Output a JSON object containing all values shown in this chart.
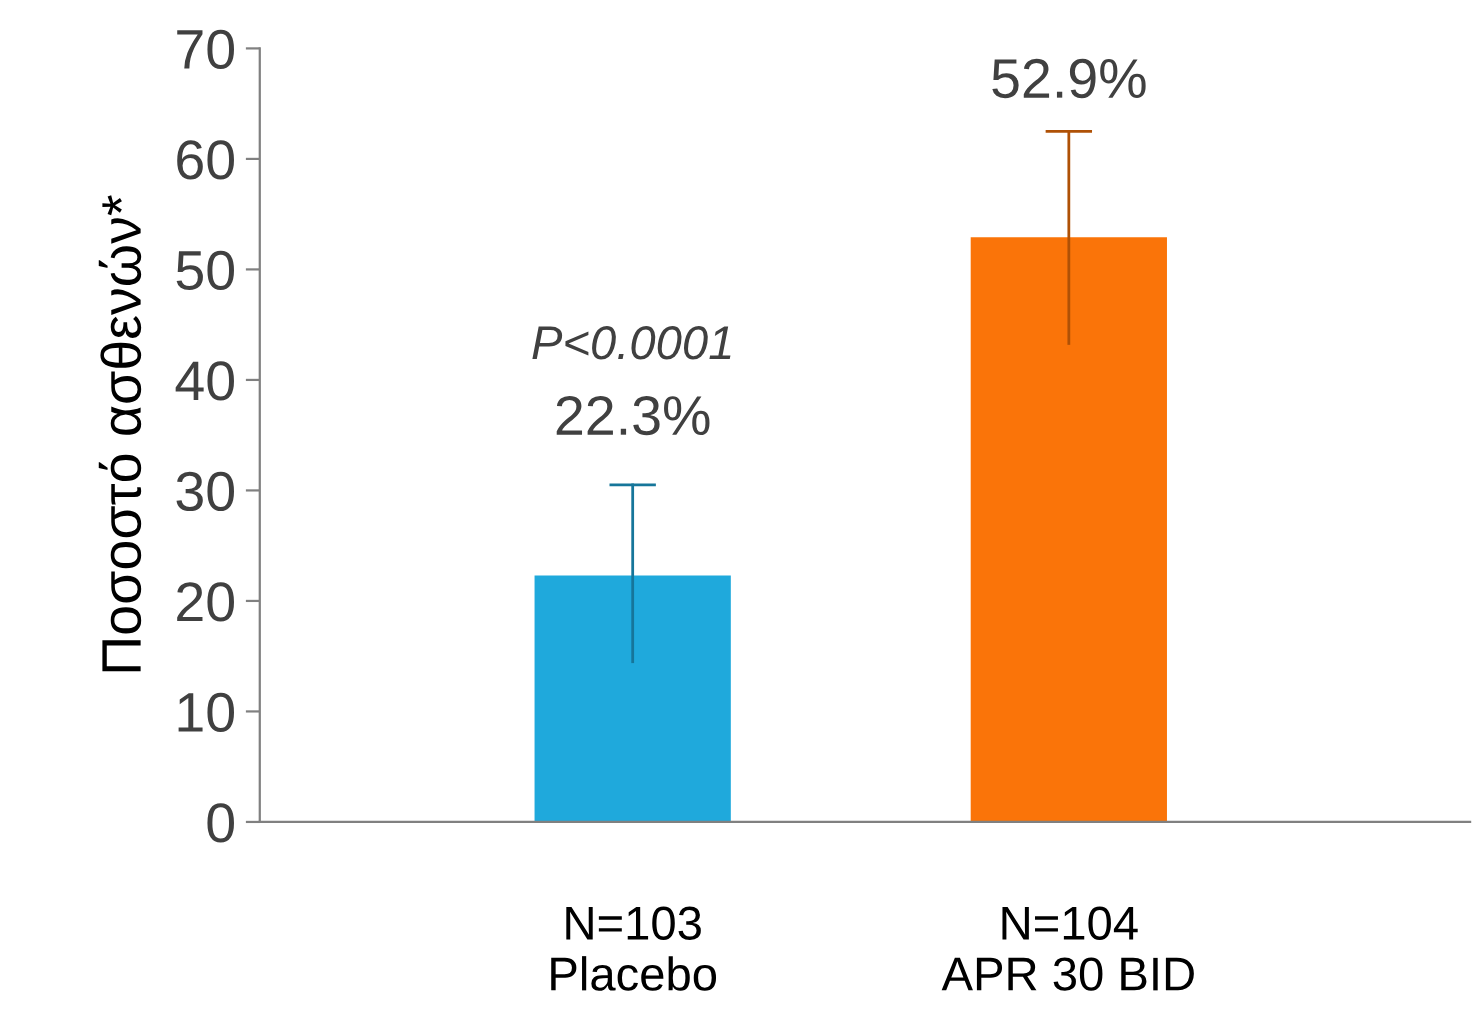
{
  "chart_data": {
    "type": "bar",
    "ylabel": "Ποσοστό ασθενών*",
    "categories": [
      "N=103\nPlacebo",
      "N=104\nAPR 30 BID"
    ],
    "values": [
      22.3,
      52.9
    ],
    "colors": [
      "#1fa9dc",
      "#fa7409"
    ],
    "errors": [
      [
        14.5,
        30.5
      ],
      [
        43.3,
        62.5
      ]
    ],
    "value_labels": [
      "22.3%",
      "52.9%"
    ],
    "annotations": [
      "P<0.0001"
    ],
    "ylim": [
      0,
      70
    ],
    "yticks": [
      0,
      10,
      20,
      30,
      40,
      50,
      60,
      70
    ],
    "grid": false,
    "legend": false
  }
}
